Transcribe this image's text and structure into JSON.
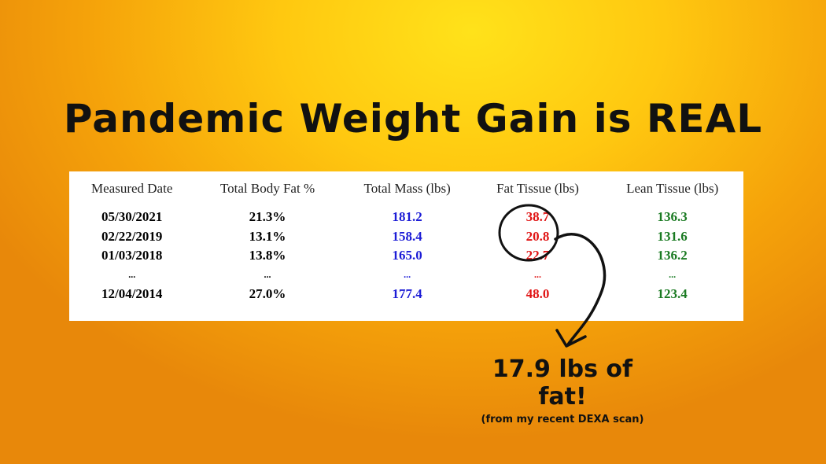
{
  "header": {
    "title": "Pandemic Weight Gain is REAL"
  },
  "table": {
    "headers": [
      "Measured Date",
      "Total Body Fat %",
      "Total Mass (lbs)",
      "Fat Tissue (lbs)",
      "Lean Tissue (lbs)"
    ],
    "rows": [
      [
        "05/30/2021",
        "21.3%",
        "181.2",
        "38.7",
        "136.3"
      ],
      [
        "02/22/2019",
        "13.1%",
        "158.4",
        "20.8",
        "131.6"
      ],
      [
        "01/03/2018",
        "13.8%",
        "165.0",
        "22.7",
        "136.2"
      ],
      [
        "...",
        "...",
        "...",
        "...",
        "..."
      ],
      [
        "12/04/2014",
        "27.0%",
        "177.4",
        "48.0",
        "123.4"
      ]
    ]
  },
  "annotation": {
    "text": "17.9 lbs of fat!",
    "note": "(from my recent DEXA scan)"
  }
}
